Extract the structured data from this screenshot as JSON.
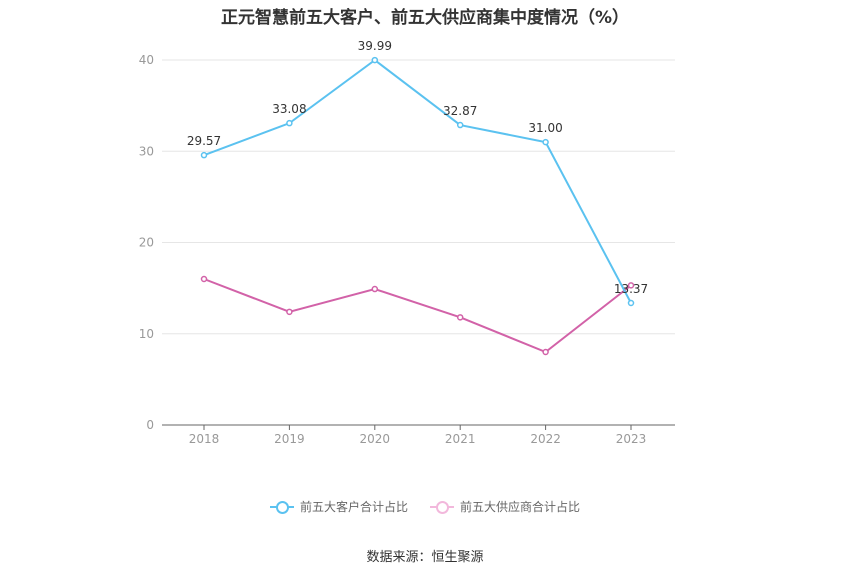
{
  "chart_data": {
    "type": "line",
    "title": "正元智慧前五大客户、前五大供应商集中度情况（%）",
    "categories": [
      "2018",
      "2019",
      "2020",
      "2021",
      "2022",
      "2023"
    ],
    "series": [
      {
        "name": "前五大客户合计占比",
        "color": "#5bc2f0",
        "values": [
          29.57,
          33.08,
          39.99,
          32.87,
          31.0,
          13.37
        ],
        "labels_shown": true
      },
      {
        "name": "前五大供应商合计占比",
        "color": "#d262a8",
        "values": [
          16.0,
          12.4,
          14.9,
          11.8,
          8.0,
          15.3
        ],
        "labels_shown": false
      }
    ],
    "ylim": [
      0,
      40
    ],
    "yticks": [
      0,
      10,
      20,
      30,
      40
    ],
    "grid": true,
    "legend_position": "bottom"
  },
  "footer": {
    "source": "数据来源：恒生聚源"
  }
}
